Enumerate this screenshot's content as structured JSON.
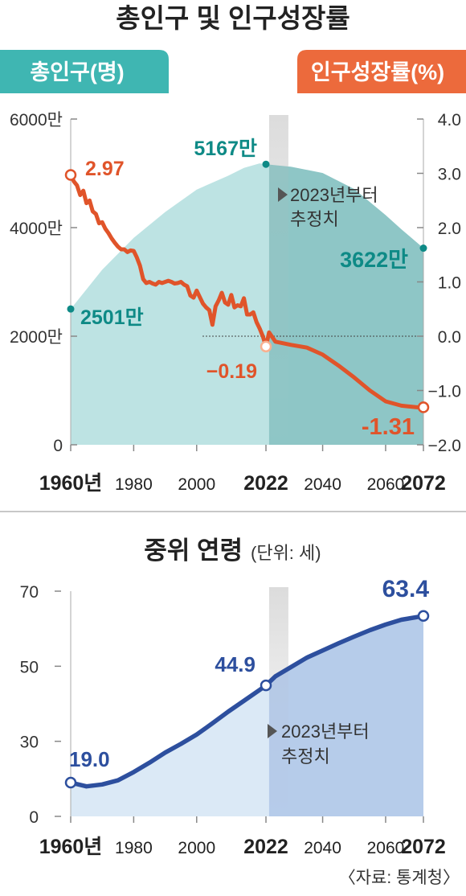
{
  "chart_data": [
    {
      "type": "area",
      "title": "총인구 및 인구성장률",
      "left_axis": {
        "label": "총인구(명)",
        "ticks": [
          "6000만",
          "4000만",
          "2000만",
          "0"
        ],
        "tick_values": [
          6000,
          4000,
          2000,
          0
        ],
        "range": [
          0,
          6000
        ]
      },
      "right_axis": {
        "label": "인구성장률(%)",
        "ticks": [
          "4.0",
          "3.0",
          "2.0",
          "1.0",
          "0.0",
          "−1.0",
          "−2.0"
        ],
        "tick_values": [
          4,
          3,
          2,
          1,
          0,
          -1,
          -2
        ],
        "range": [
          -2,
          4
        ]
      },
      "x_axis": {
        "ticks": [
          "1960년",
          "1980",
          "2000",
          "2022",
          "2040",
          "2060",
          "2072"
        ],
        "tick_values": [
          1960,
          1980,
          2000,
          2022,
          2040,
          2060,
          2072
        ],
        "range": [
          1960,
          2072
        ]
      },
      "projection_start": 2023,
      "projection_note": [
        "2023년부터",
        "추정치"
      ],
      "population": {
        "x": [
          1960,
          1970,
          1980,
          1990,
          2000,
          2010,
          2015,
          2020,
          2022,
          2030,
          2040,
          2050,
          2060,
          2065,
          2072
        ],
        "y": [
          2501,
          3224,
          3812,
          4287,
          4701,
          4955,
          5101,
          5184,
          5167,
          5120,
          5006,
          4711,
          4230,
          3969,
          3622
        ],
        "labels": [
          {
            "text": "2501만",
            "x": 1960,
            "y": 2501
          },
          {
            "text": "5167만",
            "x": 2022,
            "y": 5167
          },
          {
            "text": "3622만",
            "x": 2072,
            "y": 3622
          }
        ]
      },
      "growth_rate": {
        "x": [
          1960,
          1961,
          1962,
          1963,
          1964,
          1965,
          1966,
          1967,
          1968,
          1969,
          1970,
          1971,
          1972,
          1973,
          1974,
          1975,
          1976,
          1977,
          1978,
          1979,
          1980,
          1981,
          1982,
          1983,
          1984,
          1985,
          1986,
          1987,
          1988,
          1989,
          1990,
          1991,
          1992,
          1993,
          1994,
          1995,
          1996,
          1997,
          1998,
          1999,
          2000,
          2001,
          2002,
          2003,
          2004,
          2005,
          2006,
          2007,
          2008,
          2009,
          2010,
          2011,
          2012,
          2013,
          2014,
          2015,
          2016,
          2017,
          2018,
          2019,
          2020,
          2021,
          2022,
          2023,
          2025,
          2030,
          2035,
          2040,
          2045,
          2050,
          2055,
          2060,
          2065,
          2070,
          2072
        ],
        "y": [
          2.97,
          2.85,
          2.78,
          2.6,
          2.68,
          2.45,
          2.5,
          2.3,
          2.25,
          2.08,
          2.1,
          1.98,
          1.9,
          1.8,
          1.72,
          1.65,
          1.6,
          1.6,
          1.55,
          1.58,
          1.57,
          1.45,
          1.3,
          1.05,
          0.98,
          1.0,
          0.97,
          0.95,
          1.0,
          0.98,
          1.0,
          1.02,
          1.0,
          0.97,
          0.98,
          1.0,
          0.95,
          0.92,
          0.75,
          0.71,
          0.84,
          0.72,
          0.6,
          0.53,
          0.48,
          0.21,
          0.55,
          0.66,
          0.8,
          0.62,
          0.58,
          0.76,
          0.53,
          0.57,
          0.55,
          0.7,
          0.4,
          0.4,
          0.44,
          0.26,
          0.14,
          0.0,
          -0.19,
          0.07,
          -0.1,
          -0.16,
          -0.21,
          -0.34,
          -0.54,
          -0.76,
          -1.0,
          -1.2,
          -1.28,
          -1.31,
          -1.31
        ],
        "labels": [
          {
            "text": "2.97",
            "x": 1960,
            "y": 2.97
          },
          {
            "text": "−0.19",
            "x": 2022,
            "y": -0.19
          },
          {
            "text": "-1.31",
            "x": 2072,
            "y": -1.31
          }
        ]
      },
      "colors": {
        "area": "#bde3e3",
        "growth_line": "#e0542a",
        "growth_marker_fill": "#f8b090",
        "population_label": "#0e8a86",
        "projection": "#7fbcbc"
      }
    },
    {
      "type": "area",
      "title": "중위 연령",
      "subtitle": "(단위: 세)",
      "y_axis": {
        "ticks": [
          "70",
          "50",
          "30",
          "0"
        ],
        "tick_values": [
          70,
          50,
          30,
          10
        ],
        "range": [
          10,
          70
        ]
      },
      "x_axis": {
        "ticks": [
          "1960년",
          "1980",
          "2000",
          "2022",
          "2040",
          "2060",
          "2072"
        ],
        "tick_values": [
          1960,
          1980,
          2000,
          2022,
          2040,
          2060,
          2072
        ],
        "range": [
          1960,
          2072
        ]
      },
      "projection_start": 2023,
      "projection_note": [
        "2023년부터",
        "추정치"
      ],
      "series": [
        {
          "x": [
            1960,
            1965,
            1970,
            1975,
            1980,
            1985,
            1990,
            1995,
            2000,
            2005,
            2010,
            2015,
            2020,
            2022,
            2025,
            2030,
            2035,
            2040,
            2045,
            2050,
            2055,
            2060,
            2065,
            2070,
            2072
          ],
          "y": [
            19.0,
            18.0,
            18.5,
            19.6,
            21.8,
            24.3,
            27.0,
            29.3,
            31.8,
            34.8,
            37.9,
            40.8,
            43.7,
            44.9,
            47.3,
            49.8,
            52.3,
            54.2,
            56.1,
            57.9,
            59.6,
            61.1,
            62.4,
            63.1,
            63.4
          ]
        }
      ],
      "labels": [
        {
          "text": "19.0",
          "x": 1960,
          "y": 19.0
        },
        {
          "text": "44.9",
          "x": 2022,
          "y": 44.9
        },
        {
          "text": "63.4",
          "x": 2072,
          "y": 63.4
        }
      ],
      "colors": {
        "area": "#dbe9f6",
        "line": "#2d4f9e",
        "projection": "#a9c2e6"
      }
    }
  ],
  "source": "〈자료: 통계청〉"
}
